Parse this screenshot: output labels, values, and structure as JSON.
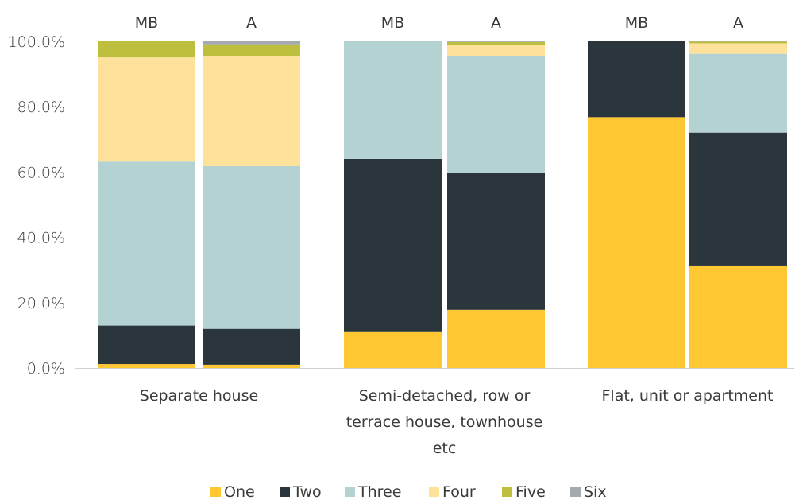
{
  "chart_data": {
    "type": "bar",
    "stacked": true,
    "percent": true,
    "groups": [
      {
        "category": "Separate house",
        "bars": [
          "MB",
          "A"
        ]
      },
      {
        "category": "Semi-detached, row or terrace house, townhouse etc",
        "bars": [
          "MB",
          "A"
        ]
      },
      {
        "category": "Flat, unit or apartment",
        "bars": [
          "MB",
          "A"
        ]
      }
    ],
    "bar_order": [
      "Separate house|MB",
      "Separate house|A",
      "Semi-detached, row or terrace house, townhouse etc|MB",
      "Semi-detached, row or terrace house, townhouse etc|A",
      "Flat, unit or apartment|MB",
      "Flat, unit or apartment|A"
    ],
    "series": [
      {
        "name": "One",
        "color": "#ffc832",
        "values": [
          1.2,
          1.0,
          11.0,
          17.8,
          76.8,
          31.4
        ]
      },
      {
        "name": "Two",
        "color": "#2b363c",
        "values": [
          11.8,
          11.0,
          53.0,
          42.0,
          23.2,
          40.7
        ]
      },
      {
        "name": "Three",
        "color": "#b5d2d2",
        "values": [
          50.2,
          49.8,
          36.0,
          35.8,
          0.0,
          24.1
        ]
      },
      {
        "name": "Four",
        "color": "#fee29b",
        "values": [
          31.9,
          33.6,
          0.0,
          3.4,
          0.0,
          3.2
        ]
      },
      {
        "name": "Five",
        "color": "#bfbf3f",
        "values": [
          4.9,
          3.7,
          0.0,
          0.8,
          0.0,
          0.5
        ]
      },
      {
        "name": "Six",
        "color": "#a5a9b0",
        "values": [
          0.0,
          0.9,
          0.0,
          0.2,
          0.0,
          0.1
        ]
      }
    ],
    "ylim": [
      0,
      100
    ],
    "yticks": [
      "0.0%",
      "20.0%",
      "40.0%",
      "60.0%",
      "80.0%",
      "100.0%"
    ],
    "ytick_values": [
      0,
      20,
      40,
      60,
      80,
      100
    ],
    "category_labels": [
      [
        "Separate house"
      ],
      [
        "Semi-detached, row or",
        "terrace house, townhouse",
        "etc"
      ],
      [
        "Flat, unit or apartment"
      ]
    ],
    "bar_top_labels": [
      "MB",
      "A",
      "MB",
      "A",
      "MB",
      "A"
    ],
    "grid": false,
    "legend_position": "bottom",
    "title": "",
    "xlabel": "",
    "ylabel": ""
  }
}
